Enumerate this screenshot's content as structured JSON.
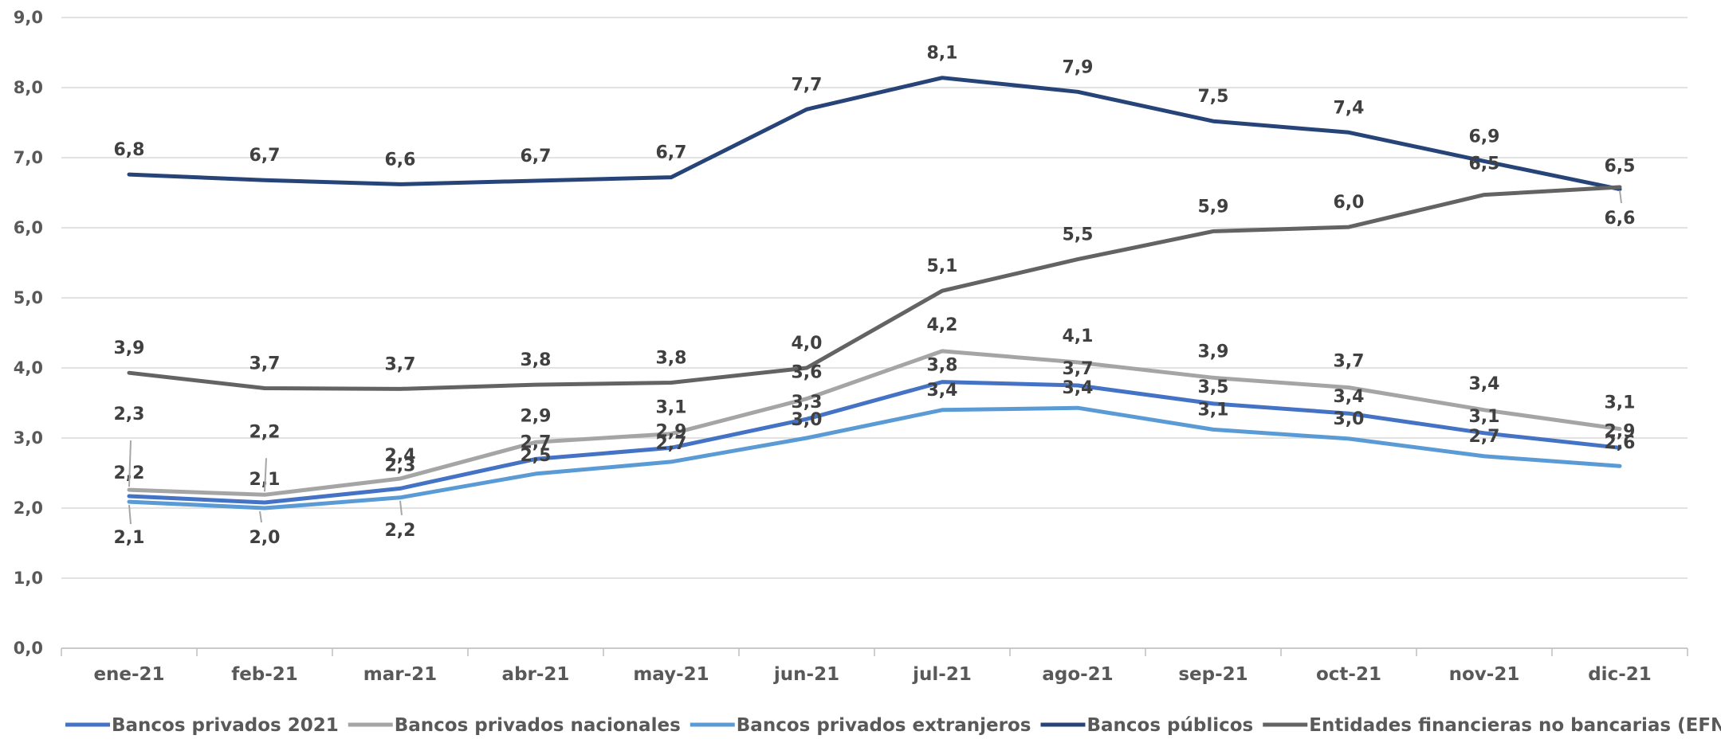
{
  "chart_data": {
    "type": "line",
    "title": "",
    "xlabel": "",
    "ylabel": "",
    "ylim": [
      0,
      9
    ],
    "yticks": [
      "0,0",
      "1,0",
      "2,0",
      "3,0",
      "4,0",
      "5,0",
      "6,0",
      "7,0",
      "8,0",
      "9,0"
    ],
    "grid": true,
    "legend_position": "bottom",
    "categories": [
      "ene-21",
      "feb-21",
      "mar-21",
      "abr-21",
      "may-21",
      "jun-21",
      "jul-21",
      "ago-21",
      "sep-21",
      "oct-21",
      "nov-21",
      "dic-21"
    ],
    "series": [
      {
        "name": "Bancos privados 2021",
        "color": "#4472C4",
        "values": [
          2.17,
          2.08,
          2.28,
          2.7,
          2.86,
          3.27,
          3.8,
          3.75,
          3.49,
          3.35,
          3.07,
          2.86
        ],
        "labels": [
          "2,2",
          "2,1",
          "2,3",
          "2,7",
          "2,9",
          "3,3",
          "3,8",
          "3,7",
          "3,5",
          "3,4",
          "3,1",
          "2,9"
        ]
      },
      {
        "name": "Bancos privados nacionales",
        "color": "#A5A5A5",
        "values": [
          2.26,
          2.19,
          2.42,
          2.94,
          3.06,
          3.56,
          4.24,
          4.08,
          3.86,
          3.72,
          3.4,
          3.13
        ],
        "labels": [
          "2,3",
          "2,2",
          "2,4",
          "2,9",
          "3,1",
          "3,6",
          "4,2",
          "4,1",
          "3,9",
          "3,7",
          "3,4",
          "3,1"
        ]
      },
      {
        "name": "Bancos privados extranjeros",
        "color": "#5B9BD5",
        "values": [
          2.09,
          2.0,
          2.15,
          2.49,
          2.66,
          3.0,
          3.4,
          3.43,
          3.12,
          2.99,
          2.74,
          2.6
        ],
        "labels": [
          "2,1",
          "2,0",
          "2,2",
          "2,5",
          "2,7",
          "3,0",
          "3,4",
          "3,4",
          "3,1",
          "3,0",
          "2,7",
          "2,6"
        ]
      },
      {
        "name": "Bancos públicos",
        "color": "#264478",
        "values": [
          6.76,
          6.68,
          6.62,
          6.67,
          6.72,
          7.69,
          8.14,
          7.94,
          7.52,
          7.36,
          6.95,
          6.55
        ],
        "labels": [
          "6,8",
          "6,7",
          "6,6",
          "6,7",
          "6,7",
          "7,7",
          "8,1",
          "7,9",
          "7,5",
          "7,4",
          "6,9",
          "6,5"
        ]
      },
      {
        "name": "Entidades financieras no bancarias (EFNB)",
        "color": "#636363",
        "values": [
          3.93,
          3.71,
          3.7,
          3.76,
          3.79,
          4.0,
          5.1,
          5.55,
          5.95,
          6.01,
          6.47,
          6.58
        ],
        "labels": [
          "3,9",
          "3,7",
          "3,7",
          "3,8",
          "3,8",
          "4,0",
          "5,1",
          "5,5",
          "5,9",
          "6,0",
          "6,5",
          "6,6"
        ]
      }
    ]
  }
}
